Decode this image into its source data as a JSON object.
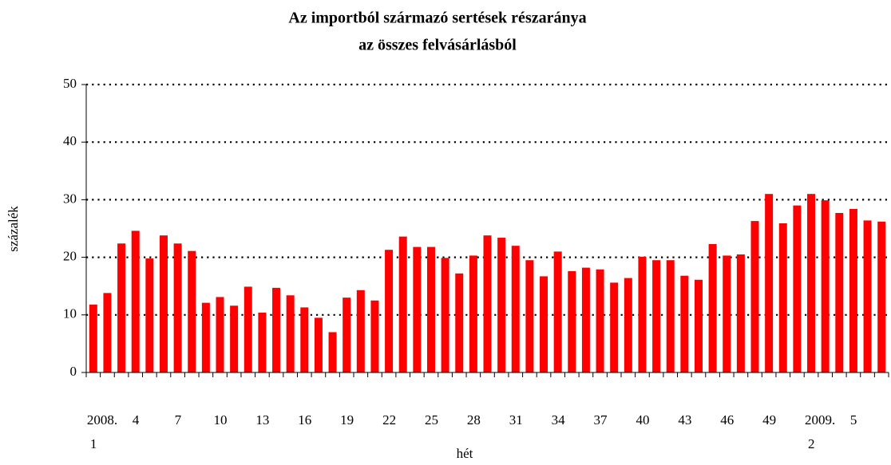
{
  "chart_data": {
    "type": "bar",
    "title": [
      "Az importból származó sertések részaránya",
      "az összes felvásárlásból"
    ],
    "y_label": "százalék",
    "x_label": "hét",
    "color": "#ff0000",
    "grid": true,
    "ylim": [
      0,
      50
    ],
    "yticks": [
      0,
      10,
      20,
      30,
      40,
      50
    ],
    "categories": [
      "2008.\n1",
      null,
      null,
      "4",
      null,
      null,
      "7",
      null,
      null,
      "10",
      null,
      null,
      "13",
      null,
      null,
      "16",
      null,
      null,
      "19",
      null,
      null,
      "22",
      null,
      null,
      "25",
      null,
      null,
      "28",
      null,
      null,
      "31",
      null,
      null,
      "34",
      null,
      null,
      "37",
      null,
      null,
      "40",
      null,
      null,
      "43",
      null,
      null,
      "46",
      null,
      null,
      "49",
      null,
      null,
      "2009.\n2",
      null,
      null,
      "5",
      null,
      null
    ],
    "values": [
      11.8,
      13.8,
      22.4,
      24.6,
      19.8,
      23.8,
      22.4,
      21.1,
      12.1,
      13.1,
      11.6,
      14.9,
      10.4,
      14.7,
      13.4,
      11.3,
      9.5,
      7.0,
      13.0,
      14.3,
      12.5,
      21.3,
      23.6,
      21.8,
      21.8,
      19.9,
      17.2,
      20.3,
      23.8,
      23.4,
      22.0,
      19.5,
      16.7,
      21.0,
      17.6,
      18.2,
      17.9,
      15.6,
      16.4,
      20.1,
      19.5,
      19.5,
      16.8,
      16.1,
      22.3,
      20.3,
      20.5,
      26.3,
      31.0,
      25.9,
      29.0,
      31.0,
      29.9,
      27.7,
      28.4,
      26.4,
      26.2
    ]
  }
}
